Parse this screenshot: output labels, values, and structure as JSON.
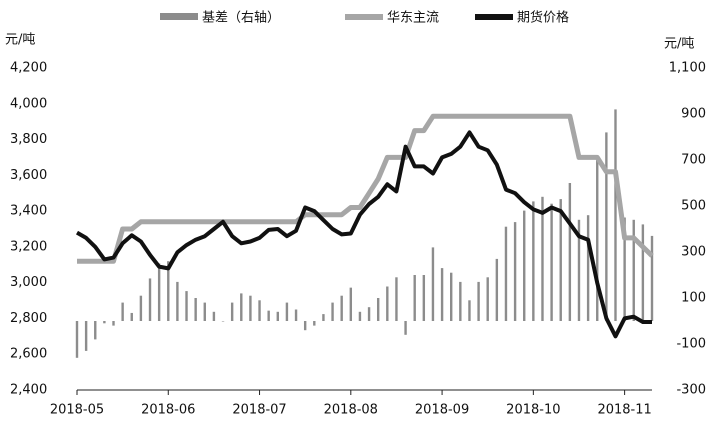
{
  "chart_data": {
    "type": "bar-line",
    "y_label": "元/吨",
    "y2_label": "元/吨",
    "categories": [
      "2018-05",
      null,
      null,
      null,
      null,
      null,
      null,
      null,
      null,
      null,
      "2018-06",
      null,
      null,
      null,
      null,
      null,
      null,
      null,
      null,
      null,
      "2018-07",
      null,
      null,
      null,
      null,
      null,
      null,
      null,
      null,
      null,
      "2018-08",
      null,
      null,
      null,
      null,
      null,
      null,
      null,
      null,
      null,
      "2018-09",
      null,
      null,
      null,
      null,
      null,
      null,
      null,
      null,
      null,
      "2018-10",
      null,
      null,
      null,
      null,
      null,
      null,
      null,
      null,
      null,
      "2018-11",
      null,
      null,
      null
    ],
    "series": [
      {
        "name": "基差（右轴）",
        "type": "bar",
        "axis": "y2",
        "color": "#8c8c8c",
        "values": [
          -160,
          -130,
          -80,
          -10,
          -20,
          80,
          35,
          110,
          185,
          250,
          260,
          170,
          130,
          100,
          80,
          40,
          0,
          80,
          120,
          110,
          90,
          45,
          40,
          80,
          50,
          -40,
          -20,
          30,
          80,
          110,
          145,
          40,
          60,
          100,
          150,
          190,
          -60,
          200,
          200,
          320,
          230,
          210,
          170,
          90,
          170,
          190,
          270,
          410,
          430,
          480,
          520,
          540,
          510,
          530,
          600,
          440,
          460,
          700,
          820,
          920,
          450,
          440,
          420,
          370
        ]
      },
      {
        "name": "华东主流",
        "type": "line",
        "color": "#a6a6a6",
        "values": [
          3120,
          3120,
          3120,
          3120,
          3120,
          3300,
          3300,
          3340,
          3340,
          3340,
          3340,
          3340,
          3340,
          3340,
          3340,
          3340,
          3340,
          3340,
          3340,
          3340,
          3340,
          3340,
          3340,
          3340,
          3340,
          3380,
          3380,
          3380,
          3380,
          3380,
          3420,
          3420,
          3500,
          3580,
          3700,
          3700,
          3700,
          3850,
          3850,
          3930,
          3930,
          3930,
          3930,
          3930,
          3930,
          3930,
          3930,
          3930,
          3930,
          3930,
          3930,
          3930,
          3930,
          3930,
          3930,
          3700,
          3700,
          3700,
          3620,
          3620,
          3250,
          3250,
          3200,
          3150
        ]
      },
      {
        "name": "期货价格",
        "type": "line",
        "color": "#111111",
        "values": [
          3280,
          3250,
          3200,
          3130,
          3140,
          3220,
          3265,
          3230,
          3155,
          3090,
          3080,
          3170,
          3210,
          3240,
          3260,
          3300,
          3340,
          3260,
          3220,
          3230,
          3250,
          3295,
          3300,
          3260,
          3290,
          3420,
          3400,
          3350,
          3300,
          3270,
          3275,
          3380,
          3440,
          3480,
          3550,
          3510,
          3760,
          3650,
          3650,
          3610,
          3700,
          3720,
          3760,
          3840,
          3760,
          3740,
          3660,
          3520,
          3500,
          3450,
          3410,
          3390,
          3420,
          3400,
          3330,
          3260,
          3240,
          3000,
          2800,
          2700,
          2800,
          2810,
          2780,
          2780
        ]
      }
    ],
    "ylim": [
      2400,
      4200
    ],
    "yticks": [
      {
        "value": 2400,
        "label": "2,400"
      },
      {
        "value": 2600,
        "label": "2,600"
      },
      {
        "value": 2800,
        "label": "2,800"
      },
      {
        "value": 3000,
        "label": "3,000"
      },
      {
        "value": 3200,
        "label": "3,200"
      },
      {
        "value": 3400,
        "label": "3,400"
      },
      {
        "value": 3600,
        "label": "3,600"
      },
      {
        "value": 3800,
        "label": "3,800"
      },
      {
        "value": 4000,
        "label": "4,000"
      },
      {
        "value": 4200,
        "label": "4,200"
      }
    ],
    "y2lim": [
      -300,
      1100
    ],
    "y2ticks": [
      -300,
      -100,
      100,
      300,
      500,
      700,
      900,
      {
        "value": 1100,
        "label": "1,100"
      }
    ],
    "grid": false,
    "legend": "top"
  }
}
